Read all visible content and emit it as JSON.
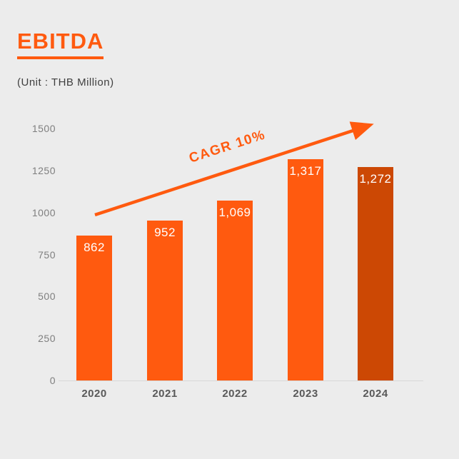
{
  "page": {
    "background": "#ECECEC"
  },
  "header": {
    "title": "EBITDA",
    "subtitle": "(Unit : THB Million)"
  },
  "chart_data": {
    "type": "bar",
    "title": "EBITDA",
    "unit": "THB Million",
    "categories": [
      "2020",
      "2021",
      "2022",
      "2023",
      "2024"
    ],
    "values": [
      862,
      952,
      1069,
      1317,
      1272
    ],
    "value_labels": [
      "862",
      "952",
      "1,069",
      "1,317",
      "1,272"
    ],
    "ylim": [
      0,
      1500
    ],
    "yticks": [
      "0",
      "250",
      "500",
      "750",
      "1000",
      "1250",
      "1500"
    ],
    "bar_colors": [
      "#FF5A0F",
      "#FF5A0F",
      "#FF5A0F",
      "#FF5A0F",
      "#CC4804"
    ],
    "annotation": {
      "text": "CAGR 10%",
      "color": "#FF5A0F"
    },
    "grid": false,
    "legend": false,
    "colors": {
      "accent_orange": "#FF5A0F",
      "dark_orange": "#CC4804",
      "ytick_gray": "#7F7F7F",
      "xlabel_gray": "#595959",
      "axis_line": "#D9D9D9"
    }
  }
}
